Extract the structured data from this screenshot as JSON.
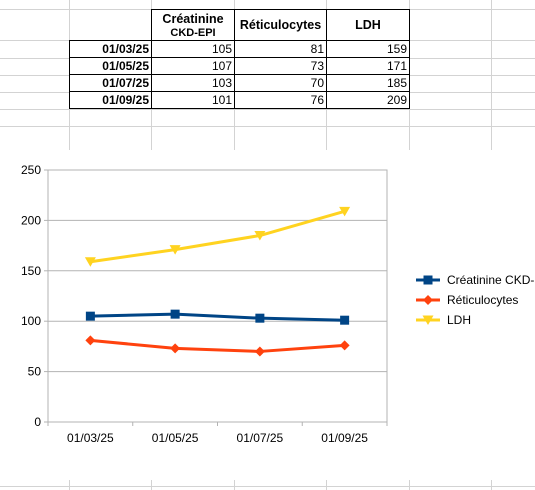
{
  "table": {
    "headers": [
      {
        "line1": "Créatinine",
        "line2": "CKD-EPI"
      },
      {
        "line1": "Réticulocytes",
        "line2": ""
      },
      {
        "line1": "LDH",
        "line2": ""
      }
    ],
    "rows": [
      {
        "date": "01/03/25",
        "values": [
          "105",
          "81",
          "159"
        ]
      },
      {
        "date": "01/05/25",
        "values": [
          "107",
          "73",
          "171"
        ]
      },
      {
        "date": "01/07/25",
        "values": [
          "103",
          "70",
          "185"
        ]
      },
      {
        "date": "01/09/25",
        "values": [
          "101",
          "76",
          "209"
        ]
      }
    ]
  },
  "chart_data": {
    "type": "line",
    "categories": [
      "01/03/25",
      "01/05/25",
      "01/07/25",
      "01/09/25"
    ],
    "series": [
      {
        "name": "Créatinine CKD-",
        "values": [
          105,
          107,
          103,
          101
        ],
        "color": "#004586",
        "marker": "square"
      },
      {
        "name": "Réticulocytes",
        "values": [
          81,
          73,
          70,
          76
        ],
        "color": "#ff420e",
        "marker": "diamond"
      },
      {
        "name": "LDH",
        "values": [
          159,
          171,
          185,
          209
        ],
        "color": "#ffd320",
        "marker": "triangle-down"
      }
    ],
    "yticks": [
      "0",
      "50",
      "100",
      "150",
      "200",
      "250"
    ],
    "ylim": [
      0,
      250
    ],
    "grid": true,
    "legend": "right"
  }
}
